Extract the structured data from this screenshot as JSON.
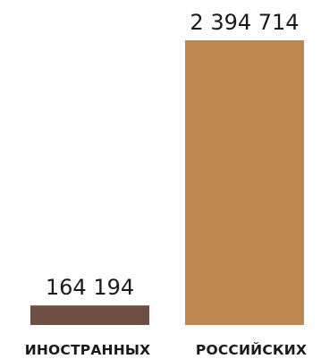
{
  "chart_data": {
    "type": "bar",
    "categories": [
      "ИНОСТРАННЫХ",
      "РОССИЙСКИХ"
    ],
    "values": [
      164194,
      2394714
    ],
    "value_labels": [
      "164 194",
      "2 394 714"
    ],
    "colors": [
      "#6f4f44",
      "#bf8850"
    ],
    "title": "",
    "xlabel": "",
    "ylabel": "",
    "ylim": [
      0,
      2394714
    ],
    "grid": false
  }
}
